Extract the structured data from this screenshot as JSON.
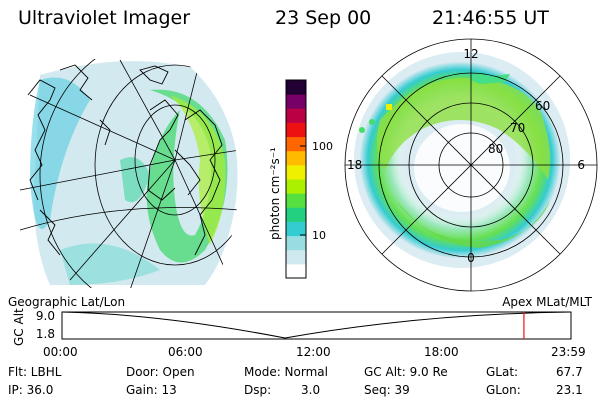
{
  "header": {
    "title": "Ultraviolet Imager",
    "date": "23 Sep 00",
    "time": "21:46:55 UT"
  },
  "colorbar": {
    "unit": "photon cm⁻²s⁻¹",
    "ticks": [
      "100",
      "10"
    ],
    "colors": [
      "#ffffff",
      "#d0e8f0",
      "#99dde0",
      "#33ccd0",
      "#22d080",
      "#55e040",
      "#aaf000",
      "#eef000",
      "#ffbb00",
      "#ff6600",
      "#ee1111",
      "#bb0044",
      "#770066",
      "#220033"
    ]
  },
  "map_left": {
    "caption": "Geographic Lat/Lon"
  },
  "map_right": {
    "caption": "Apex MLat/MLT",
    "mlt_labels": {
      "top": "12",
      "left": "18",
      "right": "6",
      "bottom": "0"
    },
    "lat_labels": [
      "60",
      "70",
      "80"
    ]
  },
  "altitude_plot": {
    "ylabel": "GC Alt",
    "y_ticks": [
      "9.0",
      "1.8"
    ],
    "x_ticks": [
      "00:00",
      "06:00",
      "12:00",
      "18:00",
      "23:59"
    ],
    "marker_time_hours": 21.78
  },
  "info": {
    "filter": "Flt: LBHL",
    "ip": "IP: 36.0",
    "door": "Door: Open",
    "gain": "Gain: 13",
    "mode": "Mode: Normal",
    "dsp_label": "Dsp:",
    "dsp_value": "3.0",
    "gc_alt": "GC Alt: 9.0 Re",
    "seq": "Seq: 39",
    "glat_label": "GLat:",
    "glat_value": "67.7",
    "glon_label": "GLon:",
    "glon_value": "23.1"
  }
}
